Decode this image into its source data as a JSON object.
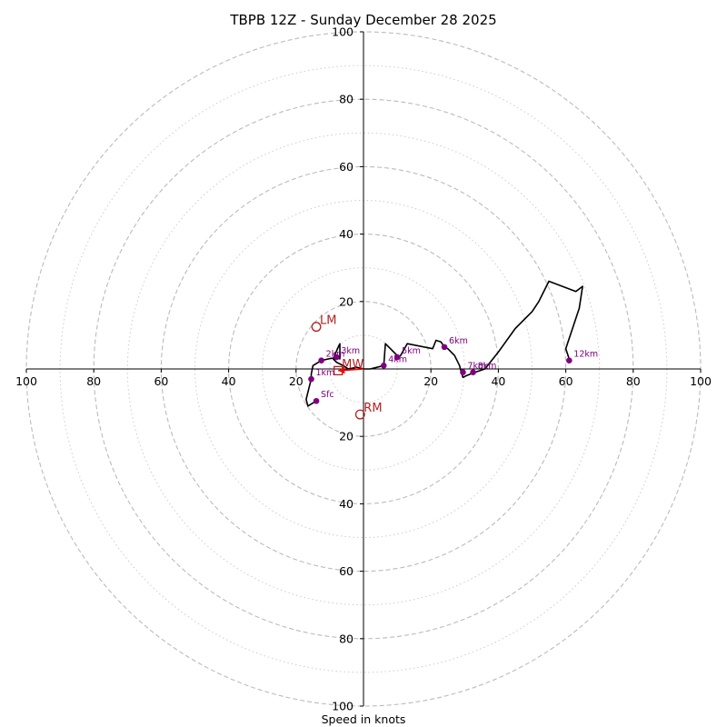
{
  "chart_data": {
    "type": "hodograph",
    "title": "TBPB 12Z - Sunday December 28 2025",
    "xlabel": "Speed in knots",
    "range": [
      -100,
      100
    ],
    "ring_values": [
      20,
      40,
      60,
      80,
      100
    ],
    "minor_ring_values": [
      10,
      30,
      50,
      70,
      90
    ],
    "tick_values": [
      -100,
      -80,
      -60,
      -40,
      -20,
      20,
      40,
      60,
      80,
      100
    ],
    "tick_labels": [
      "100",
      "80",
      "60",
      "40",
      "20",
      "20",
      "40",
      "60",
      "80",
      "100"
    ],
    "colors": {
      "trace": "#000000",
      "height_markers": "#800080",
      "storm_motion": "#b22222",
      "rings": "#bbbbbb",
      "axes": "#000000",
      "mean_wind_arrow": "#ff0000"
    },
    "trace": [
      [
        -14.0,
        -9.5
      ],
      [
        -16.5,
        -11.0
      ],
      [
        -17.0,
        -9.0
      ],
      [
        -16.0,
        -5.0
      ],
      [
        -15.5,
        -3.0
      ],
      [
        -15.5,
        -1.5
      ],
      [
        -15.0,
        1.0
      ],
      [
        -12.5,
        2.5
      ],
      [
        -8.0,
        3.5
      ],
      [
        -7.0,
        3.0
      ],
      [
        -7.0,
        7.5
      ],
      [
        -7.5,
        6.5
      ],
      [
        -9.0,
        3.0
      ],
      [
        -8.0,
        2.0
      ],
      [
        -6.0,
        1.0
      ],
      [
        -4.5,
        0.0
      ],
      [
        -2.0,
        0.5
      ],
      [
        0.0,
        0.0
      ],
      [
        2.0,
        0.0
      ],
      [
        6.0,
        1.0
      ],
      [
        6.5,
        7.5
      ],
      [
        10.0,
        4.0
      ],
      [
        10.5,
        3.5
      ],
      [
        11.0,
        4.0
      ],
      [
        13.0,
        7.5
      ],
      [
        20.5,
        6.0
      ],
      [
        21.5,
        8.5
      ],
      [
        23.0,
        8.0
      ],
      [
        24.0,
        6.5
      ],
      [
        25.0,
        6.0
      ],
      [
        27.0,
        4.0
      ],
      [
        28.5,
        1.0
      ],
      [
        29.0,
        -1.0
      ],
      [
        29.5,
        -2.5
      ],
      [
        30.5,
        -2.0
      ],
      [
        33.0,
        -1.0
      ],
      [
        36.0,
        0.0
      ],
      [
        40.0,
        5.0
      ],
      [
        45.0,
        12.0
      ],
      [
        50.0,
        17.0
      ],
      [
        52.0,
        20.0
      ],
      [
        53.0,
        22.0
      ],
      [
        55.0,
        26.0
      ],
      [
        63.0,
        23.0
      ],
      [
        65.0,
        24.5
      ],
      [
        64.0,
        18.0
      ],
      [
        60.0,
        6.0
      ],
      [
        61.0,
        3.0
      ]
    ],
    "height_markers": [
      {
        "label": "Sfc",
        "u": -14.0,
        "v": -9.5
      },
      {
        "label": "1km",
        "u": -15.5,
        "v": -3.0
      },
      {
        "label": "2km",
        "u": -12.5,
        "v": 2.5
      },
      {
        "label": "3km",
        "u": -8.0,
        "v": 3.5
      },
      {
        "label": "4km",
        "u": 6.0,
        "v": 1.0
      },
      {
        "label": "5km",
        "u": 10.0,
        "v": 3.5
      },
      {
        "label": "6km",
        "u": 24.0,
        "v": 6.5
      },
      {
        "label": "7km",
        "u": 29.5,
        "v": -1.0
      },
      {
        "label": "8km",
        "u": 32.5,
        "v": -1.0
      },
      {
        "label": "12km",
        "u": 61.0,
        "v": 2.5
      }
    ],
    "storm_motion": [
      {
        "label": "LM",
        "u": -14.0,
        "v": 12.5
      },
      {
        "label": "RM",
        "u": -1.0,
        "v": -13.5
      },
      {
        "label": "MW",
        "u": -7.5,
        "v": -0.5
      }
    ],
    "mean_wind_arrow": {
      "u": -7.5,
      "v": -0.5
    }
  }
}
